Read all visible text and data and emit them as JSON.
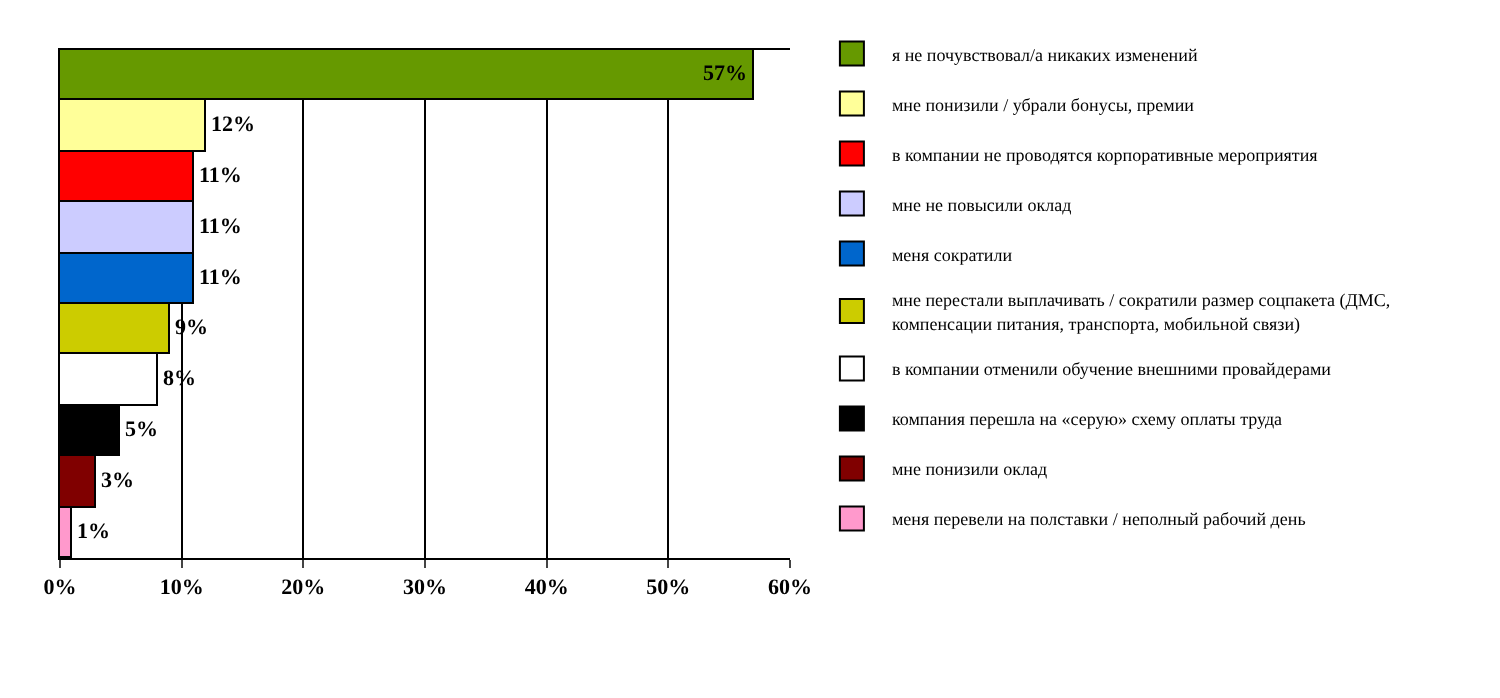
{
  "chart_data": {
    "type": "bar",
    "orientation": "horizontal",
    "categories": [
      null,
      null,
      null,
      null,
      null,
      null,
      null,
      null,
      null,
      null
    ],
    "series": [
      {
        "name": "я не почувствовал/а никаких изменений",
        "color": "#669900",
        "values": [
          57,
          null,
          null,
          null,
          null,
          null,
          null,
          null,
          null,
          null
        ],
        "value_labels": [
          "57%",
          null,
          null,
          null,
          null,
          null,
          null,
          null,
          null,
          null
        ]
      },
      {
        "name": "мне понизили / убрали бонусы, премии",
        "color": "#ffff99",
        "values": [
          null,
          12,
          null,
          null,
          null,
          null,
          null,
          null,
          null,
          null
        ],
        "value_labels": [
          null,
          "12%",
          null,
          null,
          null,
          null,
          null,
          null,
          null,
          null
        ]
      },
      {
        "name": "в компании не проводятся корпоративные мероприятия",
        "color": "#ff0000",
        "values": [
          null,
          null,
          11,
          null,
          null,
          null,
          null,
          null,
          null,
          null
        ],
        "value_labels": [
          null,
          null,
          "11%",
          null,
          null,
          null,
          null,
          null,
          null,
          null
        ]
      },
      {
        "name": "мне не повысили оклад",
        "color": "#ccccff",
        "values": [
          null,
          null,
          null,
          11,
          null,
          null,
          null,
          null,
          null,
          null
        ],
        "value_labels": [
          null,
          null,
          null,
          "11%",
          null,
          null,
          null,
          null,
          null,
          null
        ]
      },
      {
        "name": "меня сократили",
        "color": "#0066cc",
        "values": [
          null,
          null,
          null,
          null,
          11,
          null,
          null,
          null,
          null,
          null
        ],
        "value_labels": [
          null,
          null,
          null,
          null,
          "11%",
          null,
          null,
          null,
          null,
          null
        ]
      },
      {
        "name": "мне перестали выплачивать / сократили размер соцпакета (ДМС, компенсации питания, транспорта, мобильной связи)",
        "color": "#cccc00",
        "values": [
          null,
          null,
          null,
          null,
          null,
          9,
          null,
          null,
          null,
          null
        ],
        "value_labels": [
          null,
          null,
          null,
          null,
          null,
          "9%",
          null,
          null,
          null,
          null
        ]
      },
      {
        "name": "в компании отменили обучение внешними провайдерами",
        "color": "#ffffff",
        "values": [
          null,
          null,
          null,
          null,
          null,
          null,
          8,
          null,
          null,
          null
        ],
        "value_labels": [
          null,
          null,
          null,
          null,
          null,
          null,
          "8%",
          null,
          null,
          null
        ]
      },
      {
        "name": "компания перешла на «серую» схему оплаты труда",
        "color": "#000000",
        "values": [
          null,
          null,
          null,
          null,
          null,
          null,
          null,
          5,
          null,
          null
        ],
        "value_labels": [
          null,
          null,
          null,
          null,
          null,
          null,
          null,
          "5%",
          null,
          null
        ]
      },
      {
        "name": "мне понизили оклад",
        "color": "#800000",
        "values": [
          null,
          null,
          null,
          null,
          null,
          null,
          null,
          null,
          3,
          null
        ],
        "value_labels": [
          null,
          null,
          null,
          null,
          null,
          null,
          null,
          null,
          "3%",
          null
        ]
      },
      {
        "name": "меня перевели на полставки / неполный рабочий день",
        "color": "#ff99cc",
        "values": [
          null,
          null,
          null,
          null,
          null,
          null,
          null,
          null,
          null,
          1
        ],
        "value_labels": [
          null,
          null,
          null,
          null,
          null,
          null,
          null,
          null,
          null,
          "1%"
        ]
      }
    ],
    "xlim": [
      0,
      60
    ],
    "xticks": [
      {
        "value": 0,
        "label": "0%"
      },
      {
        "value": 10,
        "label": "10%"
      },
      {
        "value": 20,
        "label": "20%"
      },
      {
        "value": 30,
        "label": "30%"
      },
      {
        "value": 40,
        "label": "40%"
      },
      {
        "value": 50,
        "label": "50%"
      },
      {
        "value": 60,
        "label": "60%"
      }
    ],
    "grid": "x",
    "legend": "right"
  }
}
